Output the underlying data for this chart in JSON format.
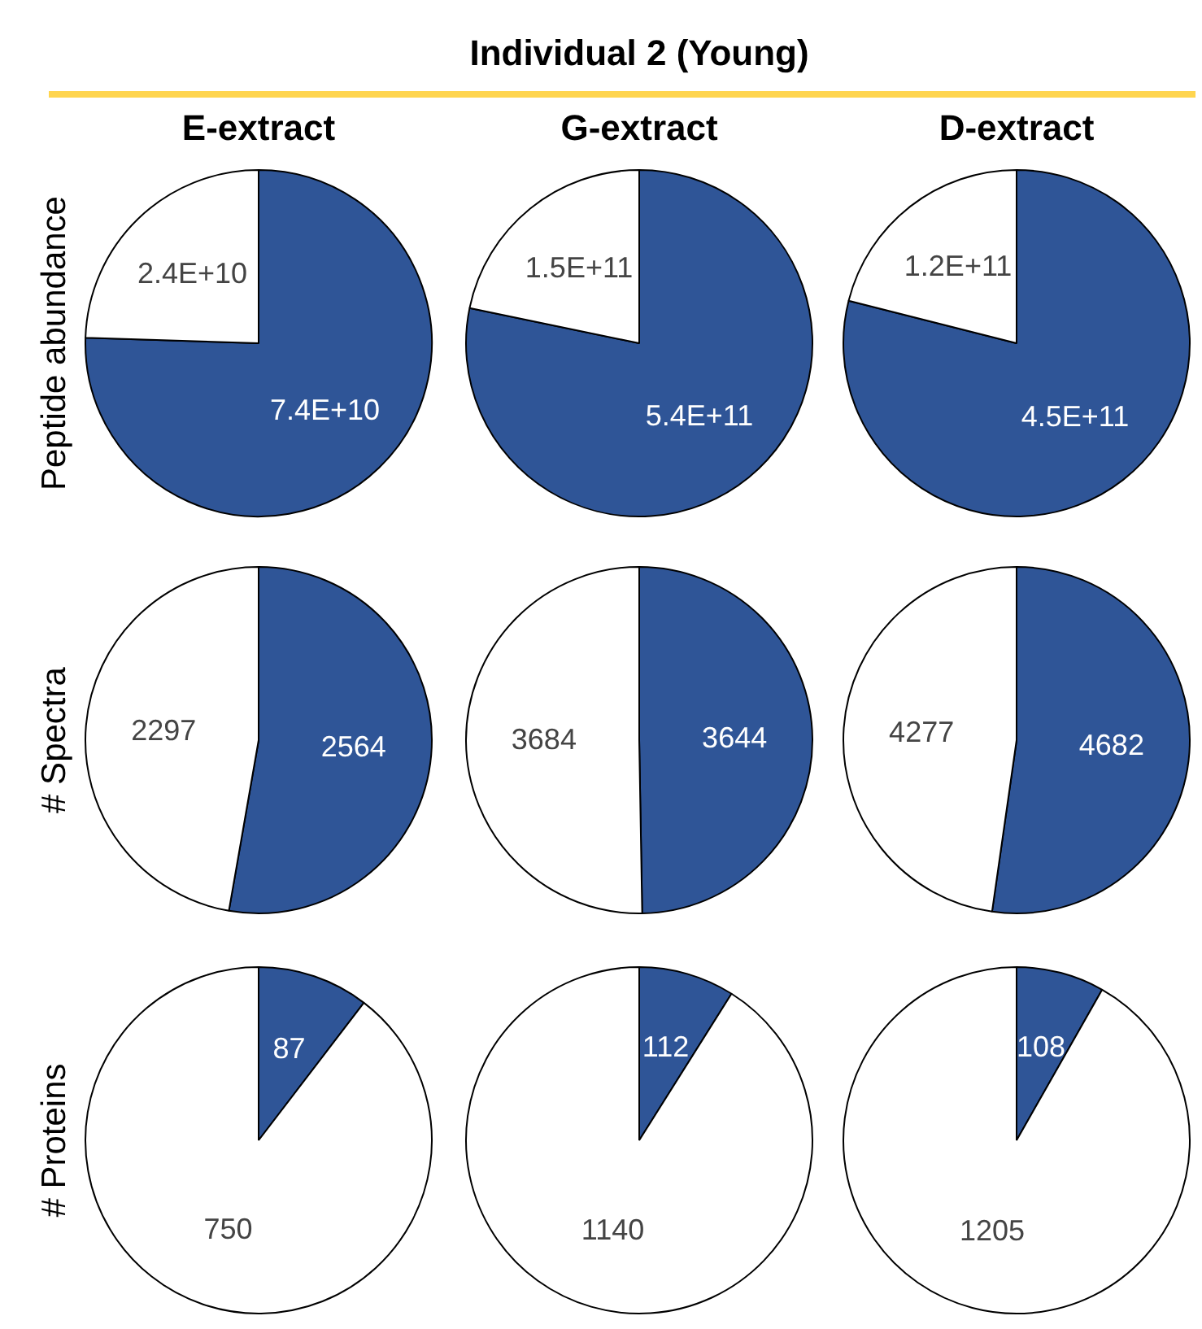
{
  "chart_data": [
    {
      "type": "pie",
      "subtitle": "E-extract",
      "ylabel": "Peptide abundance",
      "categories": [
        null,
        null
      ],
      "values": [
        74000000000,
        24000000000
      ],
      "value_labels": [
        "7.4E+10",
        "2.4E+10"
      ],
      "colors": [
        "#2f5597",
        "#ffffff"
      ]
    },
    {
      "type": "pie",
      "title": "Individual 2 (Young)",
      "subtitle": "G-extract",
      "categories": [
        null,
        null
      ],
      "values": [
        540000000000,
        150000000000
      ],
      "value_labels": [
        "5.4E+11",
        "1.5E+11"
      ],
      "colors": [
        "#2f5597",
        "#ffffff"
      ]
    },
    {
      "type": "pie",
      "subtitle": "D-extract",
      "categories": [
        null,
        null
      ],
      "values": [
        450000000000,
        120000000000
      ],
      "value_labels": [
        "4.5E+11",
        "1.2E+11"
      ],
      "colors": [
        "#2f5597",
        "#ffffff"
      ]
    },
    {
      "type": "pie",
      "ylabel": "# Spectra",
      "categories": [
        null,
        null
      ],
      "values": [
        2564,
        2297
      ],
      "data_labels": true,
      "colors": [
        "#2f5597",
        "#ffffff"
      ]
    },
    {
      "type": "pie",
      "categories": [
        null,
        null
      ],
      "values": [
        3644,
        3684
      ],
      "data_labels": true,
      "colors": [
        "#2f5597",
        "#ffffff"
      ]
    },
    {
      "type": "pie",
      "categories": [
        null,
        null
      ],
      "values": [
        4682,
        4277
      ],
      "data_labels": true,
      "colors": [
        "#2f5597",
        "#ffffff"
      ]
    },
    {
      "type": "pie",
      "ylabel": "# Proteins",
      "categories": [
        null,
        null
      ],
      "values": [
        87,
        750
      ],
      "data_labels": true,
      "colors": [
        "#2f5597",
        "#ffffff"
      ]
    },
    {
      "type": "pie",
      "categories": [
        null,
        null
      ],
      "values": [
        112,
        1140
      ],
      "data_labels": true,
      "colors": [
        "#2f5597",
        "#ffffff"
      ]
    },
    {
      "type": "pie",
      "categories": [
        null,
        null
      ],
      "values": [
        108,
        1205
      ],
      "data_labels": true,
      "colors": [
        "#2f5597",
        "#ffffff"
      ]
    }
  ]
}
